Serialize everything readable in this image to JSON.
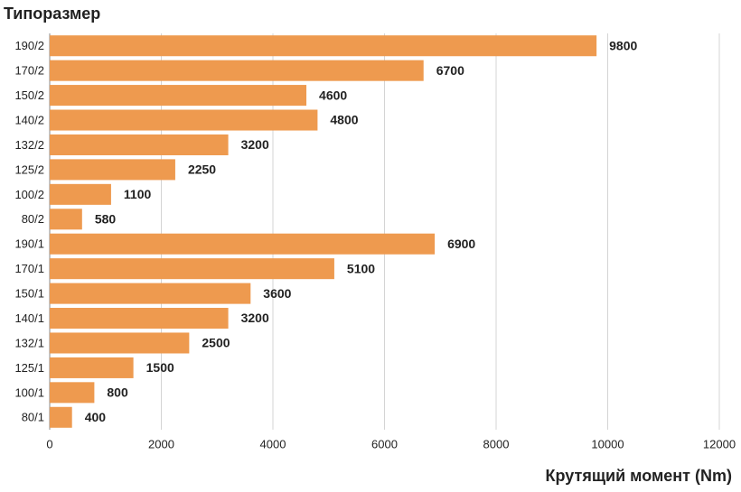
{
  "chart_data": {
    "type": "bar",
    "orientation": "horizontal",
    "y_label": "Типоразмер",
    "x_label": "Крутящий момент (Nm)",
    "categories": [
      "190/2",
      "170/2",
      "150/2",
      "140/2",
      "132/2",
      "125/2",
      "100/2",
      "80/2",
      "190/1",
      "170/1",
      "150/1",
      "140/1",
      "132/1",
      "125/1",
      "100/1",
      "80/1"
    ],
    "values": [
      9800,
      6700,
      4600,
      4800,
      3200,
      2250,
      1100,
      580,
      6900,
      5100,
      3600,
      3200,
      2500,
      1500,
      800,
      400
    ],
    "color": "#ee9a4f",
    "xlim": [
      0,
      12000
    ],
    "xticks": [
      0,
      2000,
      4000,
      6000,
      8000,
      10000,
      12000
    ],
    "grid": true
  }
}
